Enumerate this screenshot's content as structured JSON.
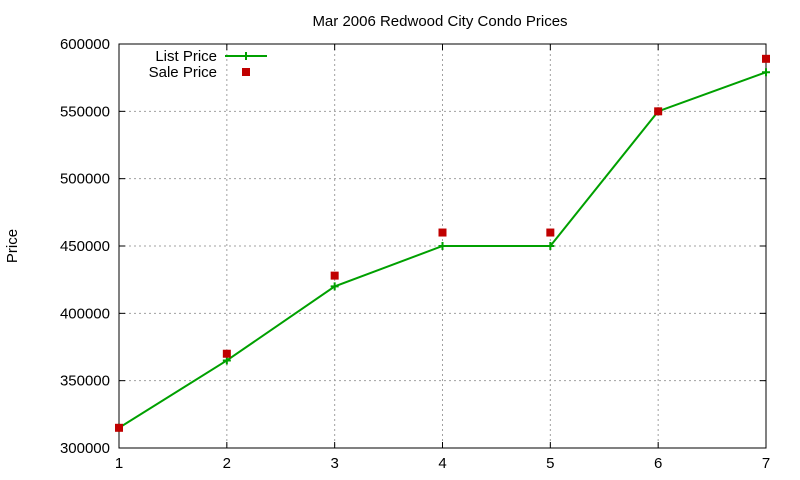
{
  "chart_data": {
    "type": "line",
    "title": "Mar 2006 Redwood City Condo Prices",
    "xlabel": "",
    "ylabel": "Price",
    "x": [
      1,
      2,
      3,
      4,
      5,
      6,
      7
    ],
    "xlim": [
      1,
      7
    ],
    "ylim": [
      300000,
      600000
    ],
    "xticks": [
      "1",
      "2",
      "3",
      "4",
      "5",
      "6",
      "7"
    ],
    "yticks": [
      "300000",
      "350000",
      "400000",
      "450000",
      "500000",
      "550000",
      "600000"
    ],
    "grid": true,
    "legend_position": "top-left",
    "series": [
      {
        "name": "List Price",
        "style": "line-with-plus-markers",
        "color": "#00a000",
        "values": [
          315000,
          365000,
          420000,
          450000,
          450000,
          550000,
          579000
        ]
      },
      {
        "name": "Sale Price",
        "style": "square-markers",
        "color": "#c00000",
        "values": [
          315000,
          370000,
          428000,
          460000,
          460000,
          550000,
          589000
        ]
      }
    ]
  }
}
